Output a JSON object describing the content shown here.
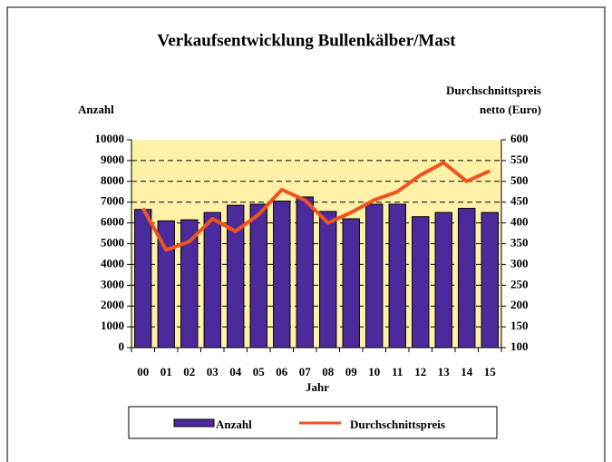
{
  "chart_data": {
    "type": "bar_line",
    "title": "Verkaufsentwicklung Bullenkälber/Mast",
    "y_label": "Anzahl",
    "y2_label": [
      "Durchschnittspreis",
      "netto (Euro)"
    ],
    "x_label": "Jahr",
    "categories": [
      "00",
      "01",
      "02",
      "03",
      "04",
      "05",
      "06",
      "07",
      "08",
      "09",
      "10",
      "11",
      "12",
      "13",
      "14",
      "15"
    ],
    "series": [
      {
        "name": "Anzahl",
        "type": "bar",
        "color": "#4b2a9c",
        "values": [
          6650,
          6100,
          6150,
          6500,
          6850,
          6900,
          7050,
          7250,
          6550,
          6200,
          6900,
          6900,
          6300,
          6500,
          6700,
          6500
        ]
      },
      {
        "name": "Durchschnittspreis",
        "type": "line",
        "axis": "y2",
        "color": "#f0541e",
        "values": [
          435,
          335,
          355,
          410,
          380,
          420,
          480,
          455,
          400,
          425,
          455,
          475,
          515,
          545,
          500,
          525
        ]
      }
    ],
    "ylim": [
      0,
      10000
    ],
    "yticks": [
      0,
      1000,
      2000,
      3000,
      4000,
      5000,
      6000,
      7000,
      8000,
      9000,
      10000
    ],
    "y2lim": [
      100,
      600
    ],
    "y2ticks": [
      100,
      150,
      200,
      250,
      300,
      350,
      400,
      450,
      500,
      550,
      600
    ],
    "grid": true,
    "legend": "bottom"
  }
}
